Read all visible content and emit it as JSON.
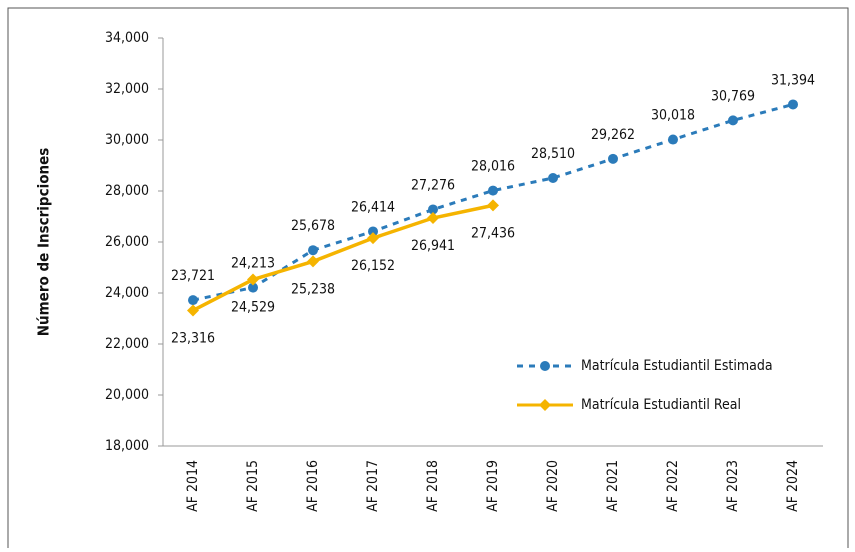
{
  "chart_data": {
    "type": "line",
    "y_label": "Número de Inscripciones",
    "categories": [
      "AF 2014",
      "AF 2015",
      "AF 2016",
      "AF 2017",
      "AF 2018",
      "AF 2019",
      "AF 2020",
      "AF 2021",
      "AF 2022",
      "AF 2023",
      "AF 2024"
    ],
    "series": [
      {
        "name": "Matrícula Estudiantil Estimada",
        "color": "#2b7bba",
        "dashed": true,
        "marker": "circle",
        "values": [
          23721,
          24213,
          25678,
          26414,
          27276,
          28016,
          28510,
          29262,
          30018,
          30769,
          31394
        ],
        "value_labels": [
          "23,721",
          "24,213",
          "25,678",
          "26,414",
          "27,276",
          "28,016",
          "28,510",
          "29,262",
          "30,018",
          "30,769",
          "31,394"
        ]
      },
      {
        "name": "Matrícula Estudiantil Real",
        "color": "#f5b400",
        "dashed": false,
        "marker": "diamond",
        "values": [
          23316,
          24529,
          25238,
          26152,
          26941,
          27436,
          null,
          null,
          null,
          null,
          null
        ],
        "value_labels": [
          "23,316",
          "24,529",
          "25,238",
          "26,152",
          "26,941",
          "27,436",
          null,
          null,
          null,
          null,
          null
        ]
      }
    ],
    "ylim": [
      18000,
      34000
    ],
    "yticks": [
      {
        "value": 18000,
        "label": "18,000"
      },
      {
        "value": 20000,
        "label": "20,000"
      },
      {
        "value": 22000,
        "label": "22,000"
      },
      {
        "value": 24000,
        "label": "24,000"
      },
      {
        "value": 26000,
        "label": "26,000"
      },
      {
        "value": 28000,
        "label": "28,000"
      },
      {
        "value": 30000,
        "label": "30,000"
      },
      {
        "value": 32000,
        "label": "32,000"
      },
      {
        "value": 34000,
        "label": "34,000"
      }
    ],
    "grid": false,
    "legend": "lower right"
  }
}
